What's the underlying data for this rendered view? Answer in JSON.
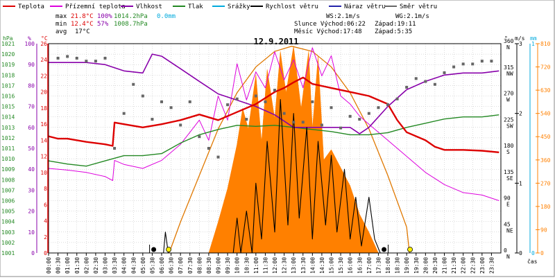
{
  "chart_data": {
    "type": "line",
    "title": "12.9.2011",
    "x_unit_label": "čas",
    "legend": [
      {
        "key": "teplota",
        "label": "Teplota",
        "color": "#dd0000"
      },
      {
        "key": "prizemni",
        "label": "Přízemní teplota",
        "color": "#dd00dd"
      },
      {
        "key": "vlhkost",
        "label": "Vlhkost",
        "color": "#8800aa"
      },
      {
        "key": "tlak",
        "label": "Tlak",
        "color": "#228822"
      },
      {
        "key": "srazky",
        "label": "Srážky",
        "color": "#00aadd"
      },
      {
        "key": "rychlost",
        "label": "Rychlost větru",
        "color": "#000000"
      },
      {
        "key": "naraz",
        "label": "Náraz větru",
        "color": "#2222aa"
      },
      {
        "key": "smer",
        "label": "Směr větru",
        "color": "#666666"
      }
    ],
    "stats": {
      "max_label": "max",
      "max_temp": "21.8°C",
      "max_hum": "100%",
      "max_press": "1014.2hPa",
      "max_rain": "0.0mm",
      "min_label": "min",
      "min_temp": "12.4°C",
      "min_hum": "57%",
      "min_press": "1008.7hPa",
      "avg_label": "avg",
      "avg_temp": "17°C",
      "ws": "WS:2.1m/s",
      "wg": "WG:2.1m/s",
      "sun_rise": "Slunce Východ:06:22",
      "sun_set": "Západ:19:11",
      "moon_rise": "Měsíc  Východ:17:48",
      "moon_set": "Západ:5:35"
    },
    "axes": {
      "hpa": {
        "unit": "hPa",
        "min": 1001,
        "max": 1021,
        "ticks": [
          "1001",
          "1002",
          "1003",
          "1004",
          "1005",
          "1006",
          "1007",
          "1008",
          "1009",
          "1010",
          "1011",
          "1012",
          "1013",
          "1014",
          "1015",
          "1016",
          "1017",
          "1018",
          "1019",
          "1020",
          "1021"
        ]
      },
      "pct": {
        "unit": "%",
        "min": 0,
        "max": 100,
        "ticks": [
          "0",
          "10",
          "20",
          "30",
          "40",
          "50",
          "60",
          "70",
          "80",
          "90",
          "100"
        ]
      },
      "temp": {
        "unit": "°C",
        "min": 0,
        "max": 26,
        "ticks": [
          "0",
          "2",
          "4",
          "6",
          "8",
          "10",
          "12",
          "14",
          "16",
          "18",
          "20",
          "22",
          "24",
          "26"
        ]
      },
      "dir": {
        "unit": "°",
        "min": 0,
        "max": 360,
        "ticks": [
          {
            "v": 0,
            "a": "0",
            "b": "N"
          },
          {
            "v": 45,
            "a": "45",
            "b": "NE"
          },
          {
            "v": 90,
            "a": "90",
            "b": "E"
          },
          {
            "v": 135,
            "a": "135",
            "b": "SE"
          },
          {
            "v": 180,
            "a": "180",
            "b": "S"
          },
          {
            "v": 225,
            "a": "225",
            "b": "SW"
          },
          {
            "v": 270,
            "a": "270",
            "b": "W"
          },
          {
            "v": 315,
            "a": "315",
            "b": "NW"
          },
          {
            "v": 360,
            "a": "360",
            "b": "N"
          }
        ]
      },
      "wind": {
        "unit": "m/s",
        "min": 0,
        "max": 3,
        "ticks": [
          "0",
          "1",
          "2",
          "3"
        ]
      },
      "rain": {
        "unit": "mm",
        "min": 0,
        "max": 1,
        "ticks": [
          "0",
          "1"
        ]
      },
      "solar": {
        "min": 0,
        "max": 810,
        "ticks": [
          "0",
          "90",
          "180",
          "270",
          "360",
          "450",
          "540",
          "630",
          "720",
          "810"
        ]
      }
    },
    "time_labels": [
      "00:00",
      "00:30",
      "01:00",
      "01:30",
      "02:00",
      "02:30",
      "03:00",
      "03:30",
      "04:00",
      "04:30",
      "05:00",
      "05:30",
      "06:00",
      "06:30",
      "07:00",
      "07:30",
      "08:00",
      "08:30",
      "09:00",
      "09:30",
      "10:00",
      "10:30",
      "11:00",
      "11:30",
      "12:00",
      "12:30",
      "13:00",
      "13:30",
      "14:00",
      "14:30",
      "15:00",
      "15:30",
      "16:00",
      "16:30",
      "17:00",
      "17:30",
      "18:00",
      "18:30",
      "19:00",
      "19:30",
      "20:00",
      "20:30",
      "21:00",
      "21:30",
      "22:00",
      "22:30",
      "23:00",
      "23:30"
    ],
    "series": {
      "teplota": {
        "x": [
          0,
          0.5,
          1,
          2,
          3,
          3.4,
          3.5,
          4,
          5,
          6,
          7,
          8,
          9,
          10,
          11,
          12,
          12.5,
          13,
          13.5,
          14,
          15,
          16,
          17,
          18,
          18.5,
          19,
          20,
          20.5,
          21,
          22,
          23,
          23.9
        ],
        "y": [
          14.5,
          14.2,
          14.2,
          13.8,
          13.5,
          13.3,
          16.2,
          16.0,
          15.6,
          16.0,
          16.5,
          17.2,
          16.5,
          17.5,
          18.5,
          20.0,
          20.5,
          21.2,
          21.8,
          21.0,
          20.5,
          20.0,
          19.5,
          18.5,
          16.5,
          15.0,
          14.0,
          13.2,
          12.8,
          12.8,
          12.7,
          12.5
        ]
      },
      "prizemni": {
        "x": [
          0,
          1,
          2,
          3,
          3.4,
          3.5,
          4,
          5,
          6,
          7,
          7.5,
          8,
          8.5,
          9,
          9.5,
          10,
          10.5,
          11,
          11.5,
          12,
          12.5,
          13,
          13.5,
          14,
          14.5,
          15,
          15.5,
          16,
          16.5,
          17,
          18,
          19,
          20,
          21,
          22,
          23,
          23.9
        ],
        "y": [
          10.5,
          10.3,
          10.0,
          9.5,
          9.0,
          11.5,
          11.0,
          10.5,
          11.5,
          13.5,
          15.0,
          16.5,
          14.0,
          19.5,
          16.5,
          23.5,
          19.0,
          22.5,
          20.5,
          25.0,
          21.5,
          24.0,
          20.5,
          25.5,
          22.0,
          24.5,
          19.5,
          18.5,
          17.0,
          16.0,
          14.0,
          12.0,
          10.0,
          8.5,
          7.5,
          7.2,
          6.5
        ]
      },
      "vlhkost": {
        "x": [
          0,
          1,
          2,
          3,
          4,
          5,
          5.5,
          6,
          7,
          8,
          9,
          10,
          11,
          12,
          13,
          14,
          15,
          16,
          16.5,
          17,
          18,
          19,
          20,
          21,
          22,
          23,
          23.9
        ],
        "y": [
          91,
          91,
          91,
          90,
          87,
          86,
          95,
          94,
          88,
          82,
          76,
          73,
          70,
          66,
          60,
          60,
          60,
          60,
          57,
          60,
          70,
          78,
          82,
          85,
          86,
          86,
          87
        ]
      },
      "tlak": {
        "x": [
          0,
          1,
          2,
          3,
          4,
          5,
          6,
          7,
          8,
          9,
          10,
          11,
          12,
          13,
          14,
          15,
          16,
          17,
          18,
          19,
          20,
          21,
          22,
          23,
          23.9
        ],
        "y": [
          1009.8,
          1009.5,
          1009.3,
          1009.8,
          1010.3,
          1010.3,
          1010.5,
          1011.5,
          1012.3,
          1012.8,
          1013.2,
          1013.1,
          1013.2,
          1013.0,
          1012.8,
          1012.6,
          1012.3,
          1012.3,
          1012.5,
          1013.0,
          1013.4,
          1013.8,
          1014.0,
          1014.0,
          1014.2
        ]
      },
      "rychlost": {
        "x": [
          6.1,
          6.2,
          6.35,
          6.5,
          7,
          8,
          9,
          9.8,
          10.0,
          10.2,
          10.5,
          10.8,
          11.0,
          11.3,
          11.6,
          12.0,
          12.3,
          12.7,
          13.0,
          13.3,
          13.7,
          14.0,
          14.3,
          14.7,
          15.0,
          15.3,
          15.7,
          16.0,
          16.3,
          16.6,
          17.0,
          17.3,
          17.6,
          18,
          20,
          24
        ],
        "y": [
          0,
          0.3,
          0,
          0,
          0,
          0,
          0,
          0,
          0.5,
          0,
          0.6,
          0,
          1.0,
          0.2,
          1.6,
          0.3,
          2.2,
          0.4,
          2.0,
          0.5,
          1.8,
          0.2,
          1.6,
          0.4,
          1.4,
          0.3,
          1.2,
          0.2,
          0.8,
          0.1,
          0.8,
          0.2,
          0,
          0,
          0,
          0
        ]
      },
      "solar_envelope": {
        "x": [
          6.4,
          7,
          8,
          9,
          10,
          11,
          12,
          12.9,
          14,
          15,
          16,
          17,
          18,
          19,
          19.15
        ],
        "y": [
          0,
          120,
          300,
          480,
          620,
          720,
          780,
          800,
          780,
          720,
          620,
          480,
          300,
          100,
          0
        ]
      },
      "solar_measured": {
        "x": [
          8.5,
          9,
          9.5,
          10,
          10.3,
          10.6,
          11.0,
          11.3,
          11.6,
          12.0,
          12.3,
          12.6,
          13.0,
          13.4,
          13.8,
          14.0,
          14.3,
          14.6,
          15,
          15.5,
          16,
          16.5,
          17,
          17.5
        ],
        "y": [
          0,
          120,
          250,
          420,
          560,
          480,
          690,
          430,
          710,
          520,
          780,
          620,
          800,
          560,
          780,
          480,
          760,
          360,
          400,
          330,
          260,
          150,
          80,
          0
        ]
      },
      "smer": {
        "x": [
          0.5,
          1,
          1.5,
          2,
          2.5,
          3,
          3.5,
          4,
          4.5,
          5,
          5.5,
          6,
          6.5,
          7,
          7.5,
          8,
          8.5,
          9,
          9.5,
          10,
          10.5,
          11,
          11.5,
          12,
          12.5,
          13,
          13.5,
          14,
          14.5,
          15,
          15.5,
          16,
          16.5,
          17,
          17.5,
          18,
          18.5,
          19,
          19.5,
          20,
          20.5,
          21,
          21.5,
          22,
          22.5,
          23,
          23.5
        ],
        "y": [
          335,
          338,
          335,
          330,
          330,
          335,
          180,
          240,
          290,
          270,
          230,
          260,
          250,
          220,
          260,
          200,
          180,
          165,
          255,
          265,
          230,
          270,
          260,
          280,
          240,
          225,
          225,
          260,
          220,
          250,
          215,
          235,
          230,
          240,
          250,
          255,
          265,
          285,
          300,
          295,
          290,
          310,
          320,
          325,
          325,
          330,
          330
        ]
      }
    },
    "markers": {
      "sunrise_x": 6.37,
      "sunset_x": 19.18,
      "moonrise_x": 17.8,
      "moonset_x": 5.58
    }
  }
}
